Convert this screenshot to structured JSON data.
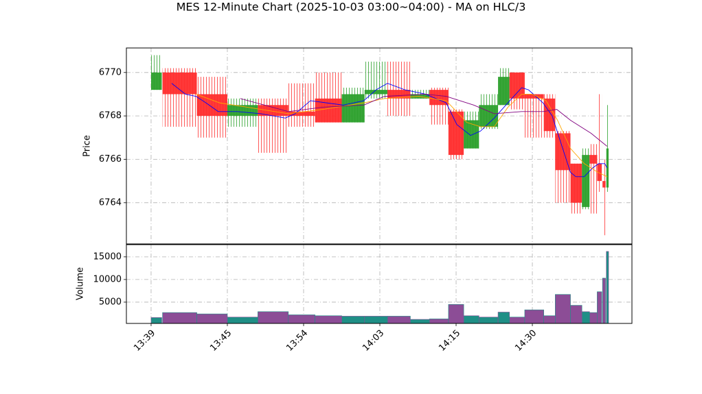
{
  "chart_data": {
    "type": "candlestick",
    "title": "MES 12-Minute Chart (2025-10-03 03:00~04:00) - MA on HLC/3",
    "ylabel": "Price",
    "volume_ylabel": "Volume",
    "up_color": "#2ca02c",
    "down_color": "#ff2d2d",
    "volume_up_color": "#1f8f86",
    "volume_down_color": "#8c4d96",
    "grid": true,
    "xlim": [
      -3.24,
      63.06
    ],
    "xticks": [
      {
        "value": 0,
        "label": "13:39"
      },
      {
        "value": 10,
        "label": "13:45"
      },
      {
        "value": 20,
        "label": "13:54"
      },
      {
        "value": 30,
        "label": "14:03"
      },
      {
        "value": 40,
        "label": "14:15"
      },
      {
        "value": 50,
        "label": "14:30"
      }
    ],
    "ylim": [
      6762.1,
      6771.13
    ],
    "yticks": [
      6764,
      6766,
      6768,
      6770
    ],
    "volume_ylim": [
      300,
      17700
    ],
    "volume_yticks": [
      5000,
      10000,
      15000
    ],
    "x_start": [
      0,
      1.5,
      6,
      10,
      14,
      18,
      21.5,
      25,
      28,
      31,
      34,
      36.5,
      39,
      41,
      43,
      45.5,
      47,
      49,
      51.5,
      53,
      55,
      56.5,
      57.5,
      58.5,
      59.2,
      59.7
    ],
    "x_end": [
      1.4,
      6,
      10,
      14,
      18,
      21.5,
      25,
      28,
      31,
      34,
      36.5,
      39,
      41,
      43,
      45.5,
      47,
      49,
      51.5,
      53,
      55,
      56.5,
      57.5,
      58.5,
      59.1,
      59.6,
      60
    ],
    "open": [
      6769.2,
      6770,
      6769,
      6768,
      6768.5,
      6768.2,
      6768.8,
      6767.7,
      6769,
      6769.2,
      6768.8,
      6769.2,
      6768.2,
      6766.5,
      6767.5,
      6768.5,
      6770,
      6769,
      6768.8,
      6767.2,
      6765.8,
      6763.8,
      6766.2,
      6765.8,
      6765,
      6764.7
    ],
    "high": [
      6770.8,
      6770.2,
      6769.8,
      6768.8,
      6768.8,
      6769.5,
      6770,
      6769.3,
      6770.5,
      6770.5,
      6769.2,
      6769.3,
      6768.3,
      6768.2,
      6769,
      6770.2,
      6770,
      6769,
      6769,
      6767.3,
      6765.8,
      6766.5,
      6766.7,
      6769,
      6766,
      6768.5
    ],
    "low": [
      6769.2,
      6767.5,
      6767,
      6767.5,
      6766.3,
      6767.5,
      6767.7,
      6767.7,
      6768.8,
      6768,
      6768.8,
      6767.6,
      6766,
      6766.5,
      6767.4,
      6768.5,
      6768.3,
      6767,
      6767,
      6764,
      6763.5,
      6763.7,
      6763.5,
      6764.5,
      6762.5,
      6764.5
    ],
    "close": [
      6770,
      6769,
      6768,
      6768.5,
      6768,
      6768,
      6767.7,
      6769,
      6769.2,
      6768.8,
      6769,
      6768.5,
      6766.2,
      6767.8,
      6768.5,
      6769.8,
      6768.8,
      6768.8,
      6767.3,
      6765.5,
      6764,
      6766.2,
      6765.8,
      6765,
      6764.7,
      6766.5
    ],
    "volume": [
      1600,
      2700,
      2400,
      1700,
      2900,
      2200,
      2000,
      1900,
      1900,
      1900,
      1200,
      1300,
      4500,
      2000,
      1700,
      2800,
      1700,
      3300,
      2000,
      6700,
      4300,
      2900,
      2700,
      7300,
      10300,
      16200
    ],
    "ma_series": [
      {
        "color": "#0000ff",
        "x": [
          2.7,
          4.5,
          5.9,
          7.2,
          8.8,
          11.3,
          14.4,
          17.6,
          18.9,
          20.9,
          23.0,
          25.2,
          27.9,
          29.5,
          31.0,
          33.3,
          36.0,
          38.7,
          40.1,
          41.9,
          43.2,
          45.0,
          47.3,
          48.6,
          49.5,
          51.4,
          52.6,
          53.7,
          55.0,
          55.7,
          56.8,
          57.9,
          58.7,
          59.5,
          59.8
        ],
        "values": [
          6769.5,
          6769,
          6768.9,
          6768.6,
          6768.2,
          6768.2,
          6768.1,
          6767.9,
          6768.1,
          6768.7,
          6768.6,
          6768.5,
          6768.7,
          6769.2,
          6769.5,
          6769.2,
          6769,
          6768.6,
          6767.6,
          6767.1,
          6767.3,
          6767.9,
          6768.8,
          6769.3,
          6769.2,
          6768.6,
          6768,
          6766.8,
          6765.4,
          6765.2,
          6765.2,
          6765.6,
          6765.8,
          6765.8,
          6765.6
        ]
      },
      {
        "color": "#ffa500",
        "x": [
          5.9,
          9.0,
          12.6,
          18.0,
          22.5,
          27.9,
          30.6,
          35.1,
          38.7,
          41.4,
          43.2,
          45.0,
          46.8,
          48.6,
          50.0,
          51.8,
          53.3,
          55.0,
          56.8,
          58.6,
          59.8
        ],
        "values": [
          6769,
          6768.6,
          6768.4,
          6768.1,
          6768.3,
          6768.6,
          6768.8,
          6768.9,
          6768.7,
          6767.7,
          6767.5,
          6767.5,
          6768.4,
          6769,
          6769,
          6768.7,
          6767.8,
          6766.5,
          6765.8,
          6765.4,
          6765.2
        ]
      },
      {
        "color": "#800080",
        "x": [
          11.7,
          18.0,
          22.5,
          27.9,
          30.6,
          36.0,
          38.7,
          42.3,
          45.0,
          48.6,
          51.4,
          53.2,
          55.0,
          57.7,
          59.8
        ],
        "values": [
          6768.8,
          6768.2,
          6768.4,
          6768.5,
          6768.9,
          6769,
          6768.9,
          6768.5,
          6768.1,
          6768.2,
          6768.2,
          6768.3,
          6767.8,
          6767.2,
          6766.6
        ]
      }
    ]
  }
}
